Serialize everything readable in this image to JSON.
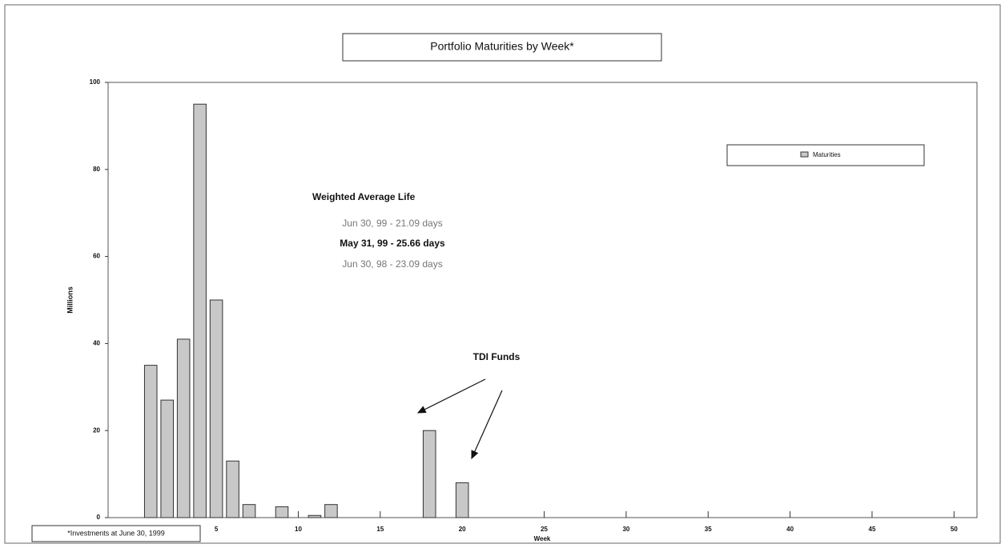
{
  "chart_data": {
    "type": "bar",
    "title": "Portfolio Maturities by Week*",
    "x": [
      1,
      2,
      3,
      4,
      5,
      6,
      7,
      9,
      11,
      12,
      18,
      20
    ],
    "series": [
      {
        "name": "Maturities",
        "color": "#c8c8c8",
        "values": [
          35,
          27,
          41,
          95,
          50,
          13,
          3,
          2.5,
          0.5,
          3,
          20,
          8
        ]
      }
    ],
    "xlabel": "Week",
    "ylabel": "Millions",
    "xlim": [
      -1.6,
      51.4
    ],
    "xticks": [
      5,
      10,
      15,
      20,
      25,
      30,
      35,
      40,
      45,
      50
    ],
    "ylim": [
      0,
      100
    ],
    "yticks": [
      0,
      20,
      40,
      60,
      80,
      100
    ],
    "legend": "upper right",
    "annotations": {
      "wal_title": "Weighted Average Life",
      "wal_1": "Jun 30, 99 - 21.09 days",
      "wal_2": "May 31, 99 - 25.66 days",
      "wal_3": "Jun 30, 98 - 23.09 days",
      "tdi": "TDI Funds"
    },
    "footnote": "*Investments at June 30, 1999"
  }
}
